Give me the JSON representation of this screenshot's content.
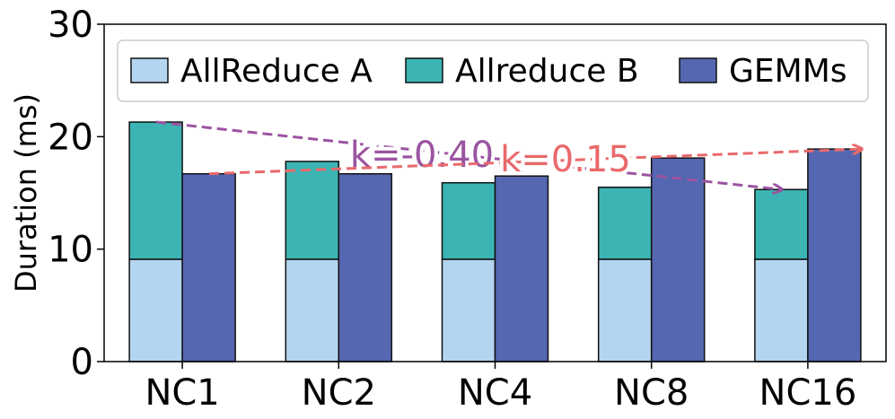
{
  "chart_data": {
    "type": "bar",
    "categories": [
      "NC1",
      "NC2",
      "NC4",
      "NC8",
      "NC16"
    ],
    "series": [
      {
        "name": "AllReduce A",
        "stack": "left",
        "values": [
          9.1,
          9.1,
          9.1,
          9.1,
          9.1
        ],
        "color": "#b4d5f0"
      },
      {
        "name": "Allreduce B",
        "stack": "left",
        "values": [
          12.2,
          8.7,
          6.8,
          6.4,
          6.2
        ],
        "color": "#3bb4b3"
      },
      {
        "name": "GEMMs",
        "stack": "right",
        "values": [
          16.7,
          16.7,
          16.5,
          18.1,
          18.9
        ],
        "color": "#5667b1"
      }
    ],
    "ylim": [
      0,
      30
    ],
    "yticks": [
      0,
      10,
      20,
      30
    ],
    "ylabel": "Duration (ms)",
    "xlabel": "",
    "legend_position": "top",
    "annotations": [
      {
        "text": "k=-0.40",
        "color": "#9b54a1",
        "from": {
          "category": "NC1",
          "value": 21.3
        },
        "to": {
          "category": "NC16",
          "value": 15.3
        }
      },
      {
        "text": "k=0.15",
        "color": "#e9696b",
        "from": {
          "category": "NC1",
          "value": 16.7
        },
        "to": {
          "category": "NC16",
          "value": 18.9
        }
      }
    ]
  }
}
